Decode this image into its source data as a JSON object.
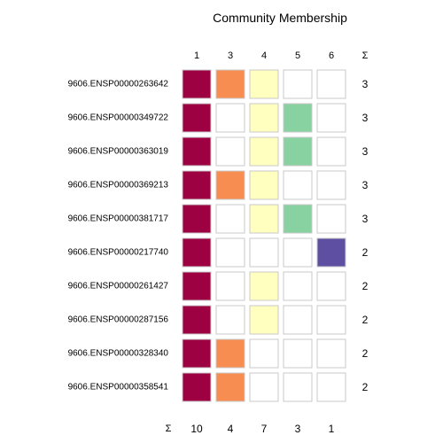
{
  "chart_data": {
    "type": "heatmap",
    "title": "Community Membership",
    "sum_symbol": "Σ",
    "columns": [
      "1",
      "3",
      "4",
      "5",
      "6"
    ],
    "column_colors": {
      "1": "#9e0142",
      "3": "#f88d52",
      "4": "#ffffbf",
      "5": "#88d1a1",
      "6": "#5e4fa2"
    },
    "empty_color": "#ffffff",
    "border_color": "#c8c8c8",
    "rows": [
      {
        "label": "9606.ENSP00000263642",
        "membership": [
          1,
          1,
          1,
          0,
          0
        ],
        "sum": "3"
      },
      {
        "label": "9606.ENSP00000349722",
        "membership": [
          1,
          0,
          1,
          1,
          0
        ],
        "sum": "3"
      },
      {
        "label": "9606.ENSP00000363019",
        "membership": [
          1,
          0,
          1,
          1,
          0
        ],
        "sum": "3"
      },
      {
        "label": "9606.ENSP00000369213",
        "membership": [
          1,
          1,
          1,
          0,
          0
        ],
        "sum": "3"
      },
      {
        "label": "9606.ENSP00000381717",
        "membership": [
          1,
          0,
          1,
          1,
          0
        ],
        "sum": "3"
      },
      {
        "label": "9606.ENSP00000217740",
        "membership": [
          1,
          0,
          0,
          0,
          1
        ],
        "sum": "2"
      },
      {
        "label": "9606.ENSP00000261427",
        "membership": [
          1,
          0,
          1,
          0,
          0
        ],
        "sum": "2"
      },
      {
        "label": "9606.ENSP00000287156",
        "membership": [
          1,
          0,
          1,
          0,
          0
        ],
        "sum": "2"
      },
      {
        "label": "9606.ENSP00000328340",
        "membership": [
          1,
          1,
          0,
          0,
          0
        ],
        "sum": "2"
      },
      {
        "label": "9606.ENSP00000358541",
        "membership": [
          1,
          1,
          0,
          0,
          0
        ],
        "sum": "2"
      }
    ],
    "column_sums": [
      "10",
      "4",
      "7",
      "3",
      "1"
    ]
  }
}
